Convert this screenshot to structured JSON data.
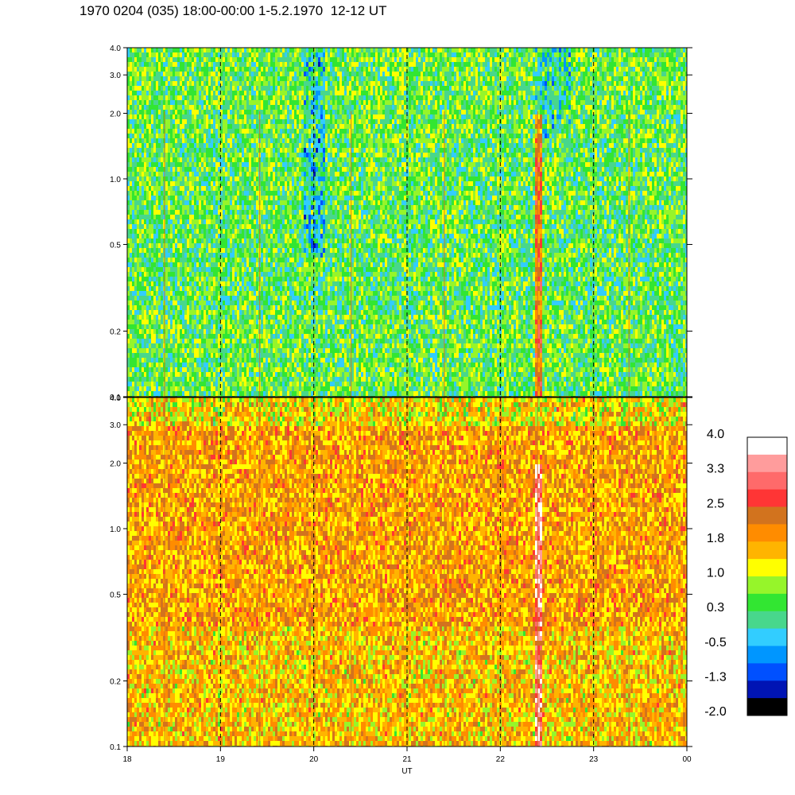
{
  "title": "1970 0204 (035) 18:00-00:00 1-5.2.1970  12-12 UT",
  "chart_data": {
    "type": "heatmap",
    "title": "1970 0204 (035) 18:00-00:00 1-5.2.1970  12-12 UT",
    "xlabel": "UT",
    "x_ticks": [
      "18",
      "19",
      "20",
      "21",
      "22",
      "23",
      "00"
    ],
    "x_range": [
      18,
      24
    ],
    "y_scale": "log",
    "y_range": [
      0.1,
      4.0
    ],
    "y_ticks": [
      "0.1",
      "0.2",
      "0.5",
      "1.0",
      "2.0",
      "3.0",
      "4.0"
    ],
    "dashed_verticals": [
      19,
      20,
      21,
      22,
      23
    ],
    "panels": [
      {
        "name": "upper",
        "dominant_level": 0.3,
        "note_levels": "mostly green / yellow-green with blue patches near 20 UT and 22.5 UT"
      },
      {
        "name": "lower",
        "dominant_level": 1.8,
        "note_levels": "mostly orange / yellow with red streak near 22.4 UT"
      }
    ],
    "highlight_streak_x": 22.4,
    "colorbar": {
      "labels": [
        "4.0",
        "3.3",
        "2.5",
        "1.8",
        "1.0",
        "0.3",
        "-0.5",
        "-1.3",
        "-2.0"
      ],
      "colors": [
        "#ffffff",
        "#ff9c9c",
        "#ff6a6a",
        "#ff3535",
        "#d2731e",
        "#ff8c00",
        "#ffb400",
        "#ffff00",
        "#96f52a",
        "#32e632",
        "#48d78c",
        "#32cdff",
        "#0096ff",
        "#0050ff",
        "#0014b4",
        "#000000"
      ],
      "range": [
        -2.0,
        4.0
      ]
    }
  }
}
